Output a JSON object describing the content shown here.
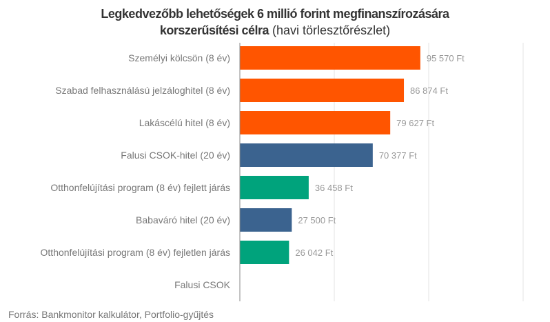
{
  "chart_data": {
    "type": "bar",
    "orientation": "horizontal",
    "title": "Legkedvezőbb lehetőségek 6 millió forint megfinanszírozására",
    "title_line2_bold": "korszerűsítési célra",
    "subtitle": "(havi törlesztőrészlet)",
    "categories": [
      "Személyi kölcsön (8 év)",
      "Szabad felhasználású jelzáloghitel (8 év)",
      "Lakáscélú hitel (8 év)",
      "Falusi CSOK-hitel (20 év)",
      "Otthonfelújítási program (8 év) fejlett járás",
      "Babaváró hitel (20 év)",
      "Otthonfelújítási program (8 év) fejletlen járás",
      "Falusi CSOK"
    ],
    "values": [
      95570,
      86874,
      79627,
      70377,
      36458,
      27500,
      26042,
      null
    ],
    "data_labels": [
      "95 570 Ft",
      "86 874 Ft",
      "79 627 Ft",
      "70 377 Ft",
      "36 458 Ft",
      "27 500 Ft",
      "26 042 Ft",
      ""
    ],
    "colors": [
      "#ff5500",
      "#ff5500",
      "#ff5500",
      "#3b638f",
      "#00a37c",
      "#3b638f",
      "#00a37c",
      "#3b638f"
    ],
    "xlim": [
      0,
      150000
    ],
    "gridlines": [
      50000,
      100000,
      150000
    ],
    "grid": true,
    "xlabel": "",
    "ylabel": ""
  },
  "source": "Forrás: Bankmonitor kalkulátor, Portfolio-gyűjtés"
}
